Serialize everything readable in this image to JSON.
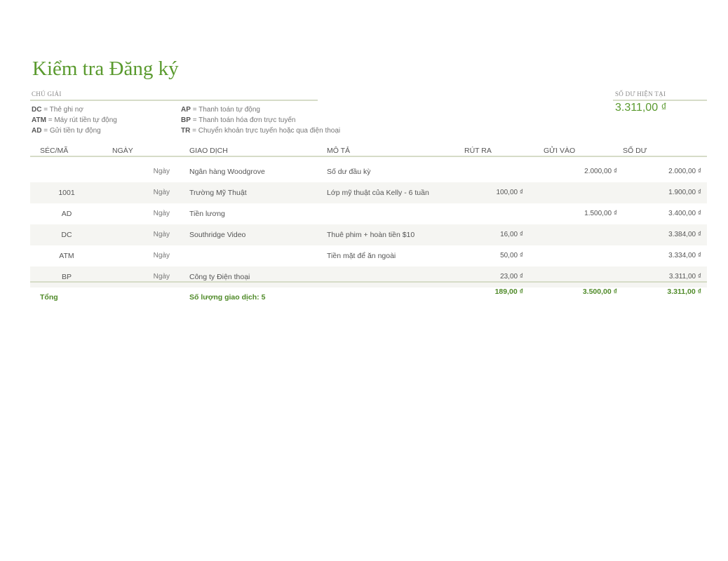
{
  "title": "Kiểm tra Đăng ký",
  "legend": {
    "caption": "CHÚ GIẢI",
    "items": [
      {
        "code": "DC",
        "text": "= Thẻ ghi nợ"
      },
      {
        "code": "ATM",
        "text": "= Máy rút tiền tự động"
      },
      {
        "code": "AD",
        "text": "= Gửi tiền tự động"
      },
      {
        "code": "AP",
        "text": "= Thanh toán tự động"
      },
      {
        "code": "BP",
        "text": "= Thanh toán hóa đơn trực tuyến"
      },
      {
        "code": "TR",
        "text": "= Chuyển khoản trực tuyến hoặc qua điện thoại"
      }
    ]
  },
  "current_balance": {
    "caption": "SỐ DƯ HIỆN TẠI",
    "value": "3.311,00 ₫"
  },
  "accent": "#5a9a2e",
  "table": {
    "headers": [
      "SÉC/MÃ",
      "NGÀY",
      "GIAO DỊCH",
      "MÔ TẢ",
      "RÚT RA",
      "GỬI VÀO",
      "SỐ DƯ"
    ],
    "rows": [
      {
        "check": "",
        "date": "Ngày",
        "tx": "Ngân hàng Woodgrove",
        "desc": "Số dư đầu kỳ",
        "withdraw": "",
        "deposit": "2.000,00 ₫",
        "balance": "2.000,00 ₫"
      },
      {
        "check": "1001",
        "date": "Ngày",
        "tx": "Trường Mỹ Thuật",
        "desc": "Lớp mỹ thuật của Kelly - 6 tuần",
        "withdraw": "100,00 ₫",
        "deposit": "",
        "balance": "1.900,00 ₫"
      },
      {
        "check": "AD",
        "date": "Ngày",
        "tx": "Tiền lương",
        "desc": "",
        "withdraw": "",
        "deposit": "1.500,00 ₫",
        "balance": "3.400,00 ₫"
      },
      {
        "check": "DC",
        "date": "Ngày",
        "tx": "Southridge Video",
        "desc": "Thuê phim + hoàn tiền $10",
        "withdraw": "16,00 ₫",
        "deposit": "",
        "balance": "3.384,00 ₫"
      },
      {
        "check": "ATM",
        "date": "Ngày",
        "tx": "",
        "desc": "Tiền mặt để ăn ngoài",
        "withdraw": "50,00 ₫",
        "deposit": "",
        "balance": "3.334,00 ₫"
      },
      {
        "check": "BP",
        "date": "Ngày",
        "tx": "Công ty Điện thoại",
        "desc": "",
        "withdraw": "23,00 ₫",
        "deposit": "",
        "balance": "3.311,00 ₫"
      }
    ],
    "total": {
      "label": "Tổng",
      "count": "Số lượng giao dịch: 5",
      "withdraw": "189,00 ₫",
      "deposit": "3.500,00 ₫",
      "balance": "3.311,00 ₫"
    }
  }
}
